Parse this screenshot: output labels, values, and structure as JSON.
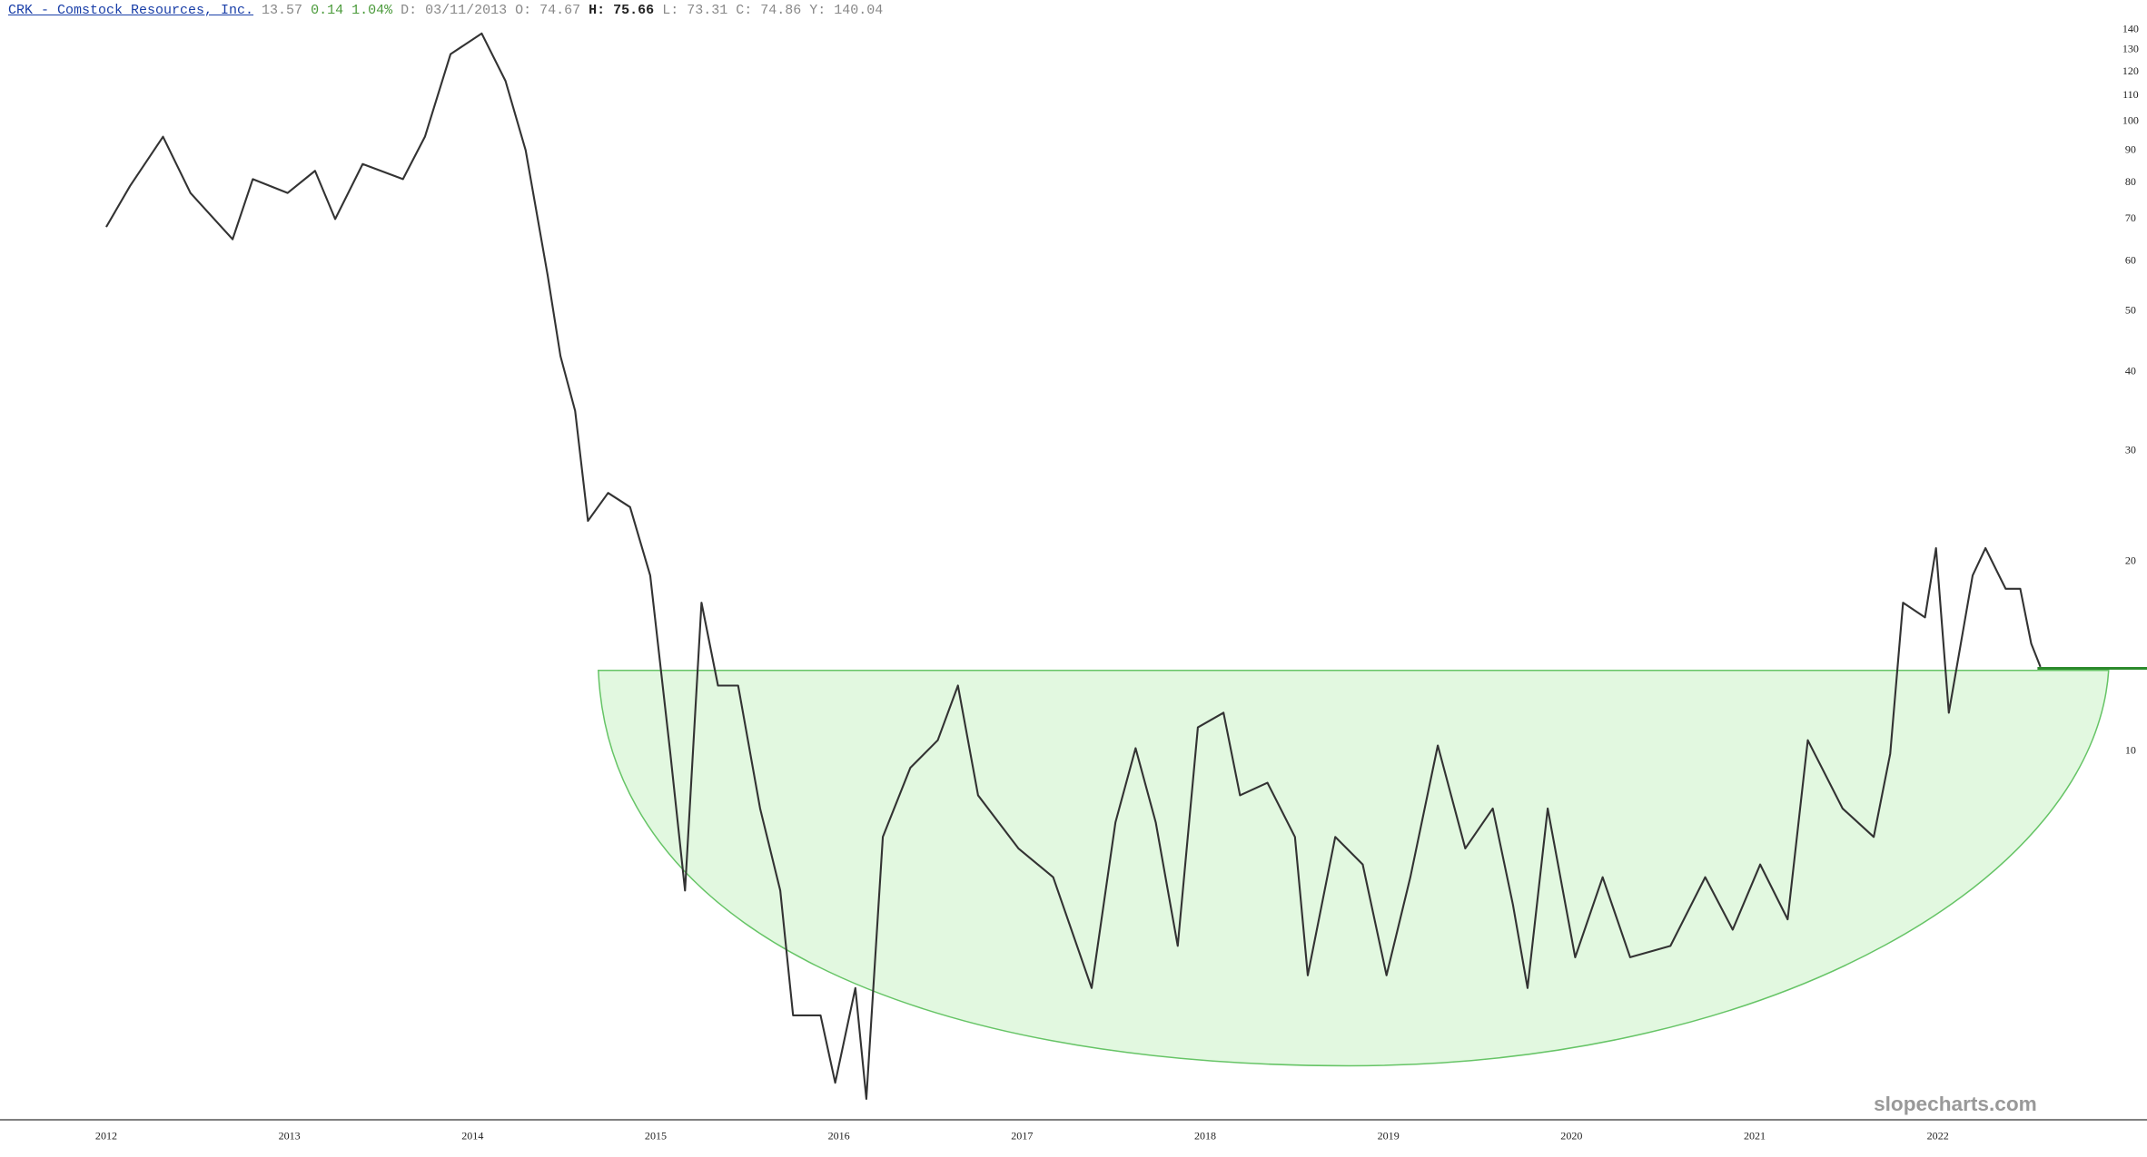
{
  "header": {
    "symbol": "CRK - Comstock Resources, Inc.",
    "last": "13.57",
    "change": "0.14",
    "change_pct": "1.04%",
    "date_label": "D:",
    "date": "03/11/2013",
    "open_label": "O:",
    "open": "74.67",
    "high_label": "H:",
    "high": "75.66",
    "low_label": "L:",
    "low": "73.31",
    "close_label": "C:",
    "close": "74.86",
    "y_label": "Y:",
    "y": "140.04"
  },
  "watermark": "slopecharts.com",
  "chart_data": {
    "type": "line",
    "color": "#333333",
    "log_scale": true,
    "xlim": [
      2011.42,
      2022.97
    ],
    "ylim": [
      2.6,
      156
    ],
    "xticks": [
      2012,
      2013,
      2014,
      2015,
      2016,
      2017,
      2018,
      2019,
      2020,
      2021,
      2022
    ],
    "yticks": [
      10,
      20,
      30,
      40,
      50,
      60,
      70,
      80,
      90,
      100,
      110,
      120,
      130,
      140
    ],
    "x": [
      2012.0,
      2012.13,
      2012.31,
      2012.46,
      2012.69,
      2012.8,
      2012.99,
      2013.14,
      2013.25,
      2013.4,
      2013.62,
      2013.74,
      2013.88,
      2014.05,
      2014.18,
      2014.29,
      2014.41,
      2014.48,
      2014.56,
      2014.63,
      2014.74,
      2014.86,
      2014.97,
      2015.08,
      2015.16,
      2015.25,
      2015.34,
      2015.45,
      2015.57,
      2015.68,
      2015.75,
      2015.9,
      2015.98,
      2016.09,
      2016.15,
      2016.24,
      2016.39,
      2016.54,
      2016.65,
      2016.76,
      2016.98,
      2017.17,
      2017.38,
      2017.51,
      2017.62,
      2017.73,
      2017.85,
      2017.96,
      2018.1,
      2018.19,
      2018.34,
      2018.49,
      2018.56,
      2018.71,
      2018.86,
      2018.99,
      2019.12,
      2019.27,
      2019.42,
      2019.57,
      2019.68,
      2019.76,
      2019.87,
      2020.02,
      2020.17,
      2020.32,
      2020.54,
      2020.73,
      2020.88,
      2021.03,
      2021.18,
      2021.29,
      2021.48,
      2021.65,
      2021.74,
      2021.81,
      2021.93,
      2021.99,
      2022.06,
      2022.19,
      2022.26,
      2022.37,
      2022.45,
      2022.51,
      2022.56
    ],
    "values": [
      68,
      79,
      94.6,
      77,
      65,
      81,
      77,
      83.5,
      70,
      85.6,
      81,
      94.6,
      128,
      138,
      116,
      90,
      57,
      42.4,
      34.7,
      23.2,
      25.7,
      24.4,
      19,
      9.9,
      6,
      17.2,
      12.7,
      12.7,
      8.1,
      6,
      3.8,
      3.8,
      2.97,
      4.2,
      2.8,
      7.3,
      9.4,
      10.4,
      12.7,
      8.5,
      7,
      6.3,
      4.2,
      7.7,
      10.1,
      7.7,
      4.9,
      10.9,
      11.5,
      8.5,
      8.9,
      7.3,
      4.4,
      7.3,
      6.6,
      4.4,
      6.3,
      10.2,
      7,
      8.1,
      5.7,
      4.2,
      8.1,
      4.7,
      6.3,
      4.7,
      4.9,
      6.3,
      5.2,
      6.6,
      5.4,
      10.4,
      8.1,
      7.3,
      9.9,
      17.2,
      16.3,
      21,
      11.5,
      19,
      21,
      18.1,
      18.1,
      14.8,
      13.6
    ]
  }
}
